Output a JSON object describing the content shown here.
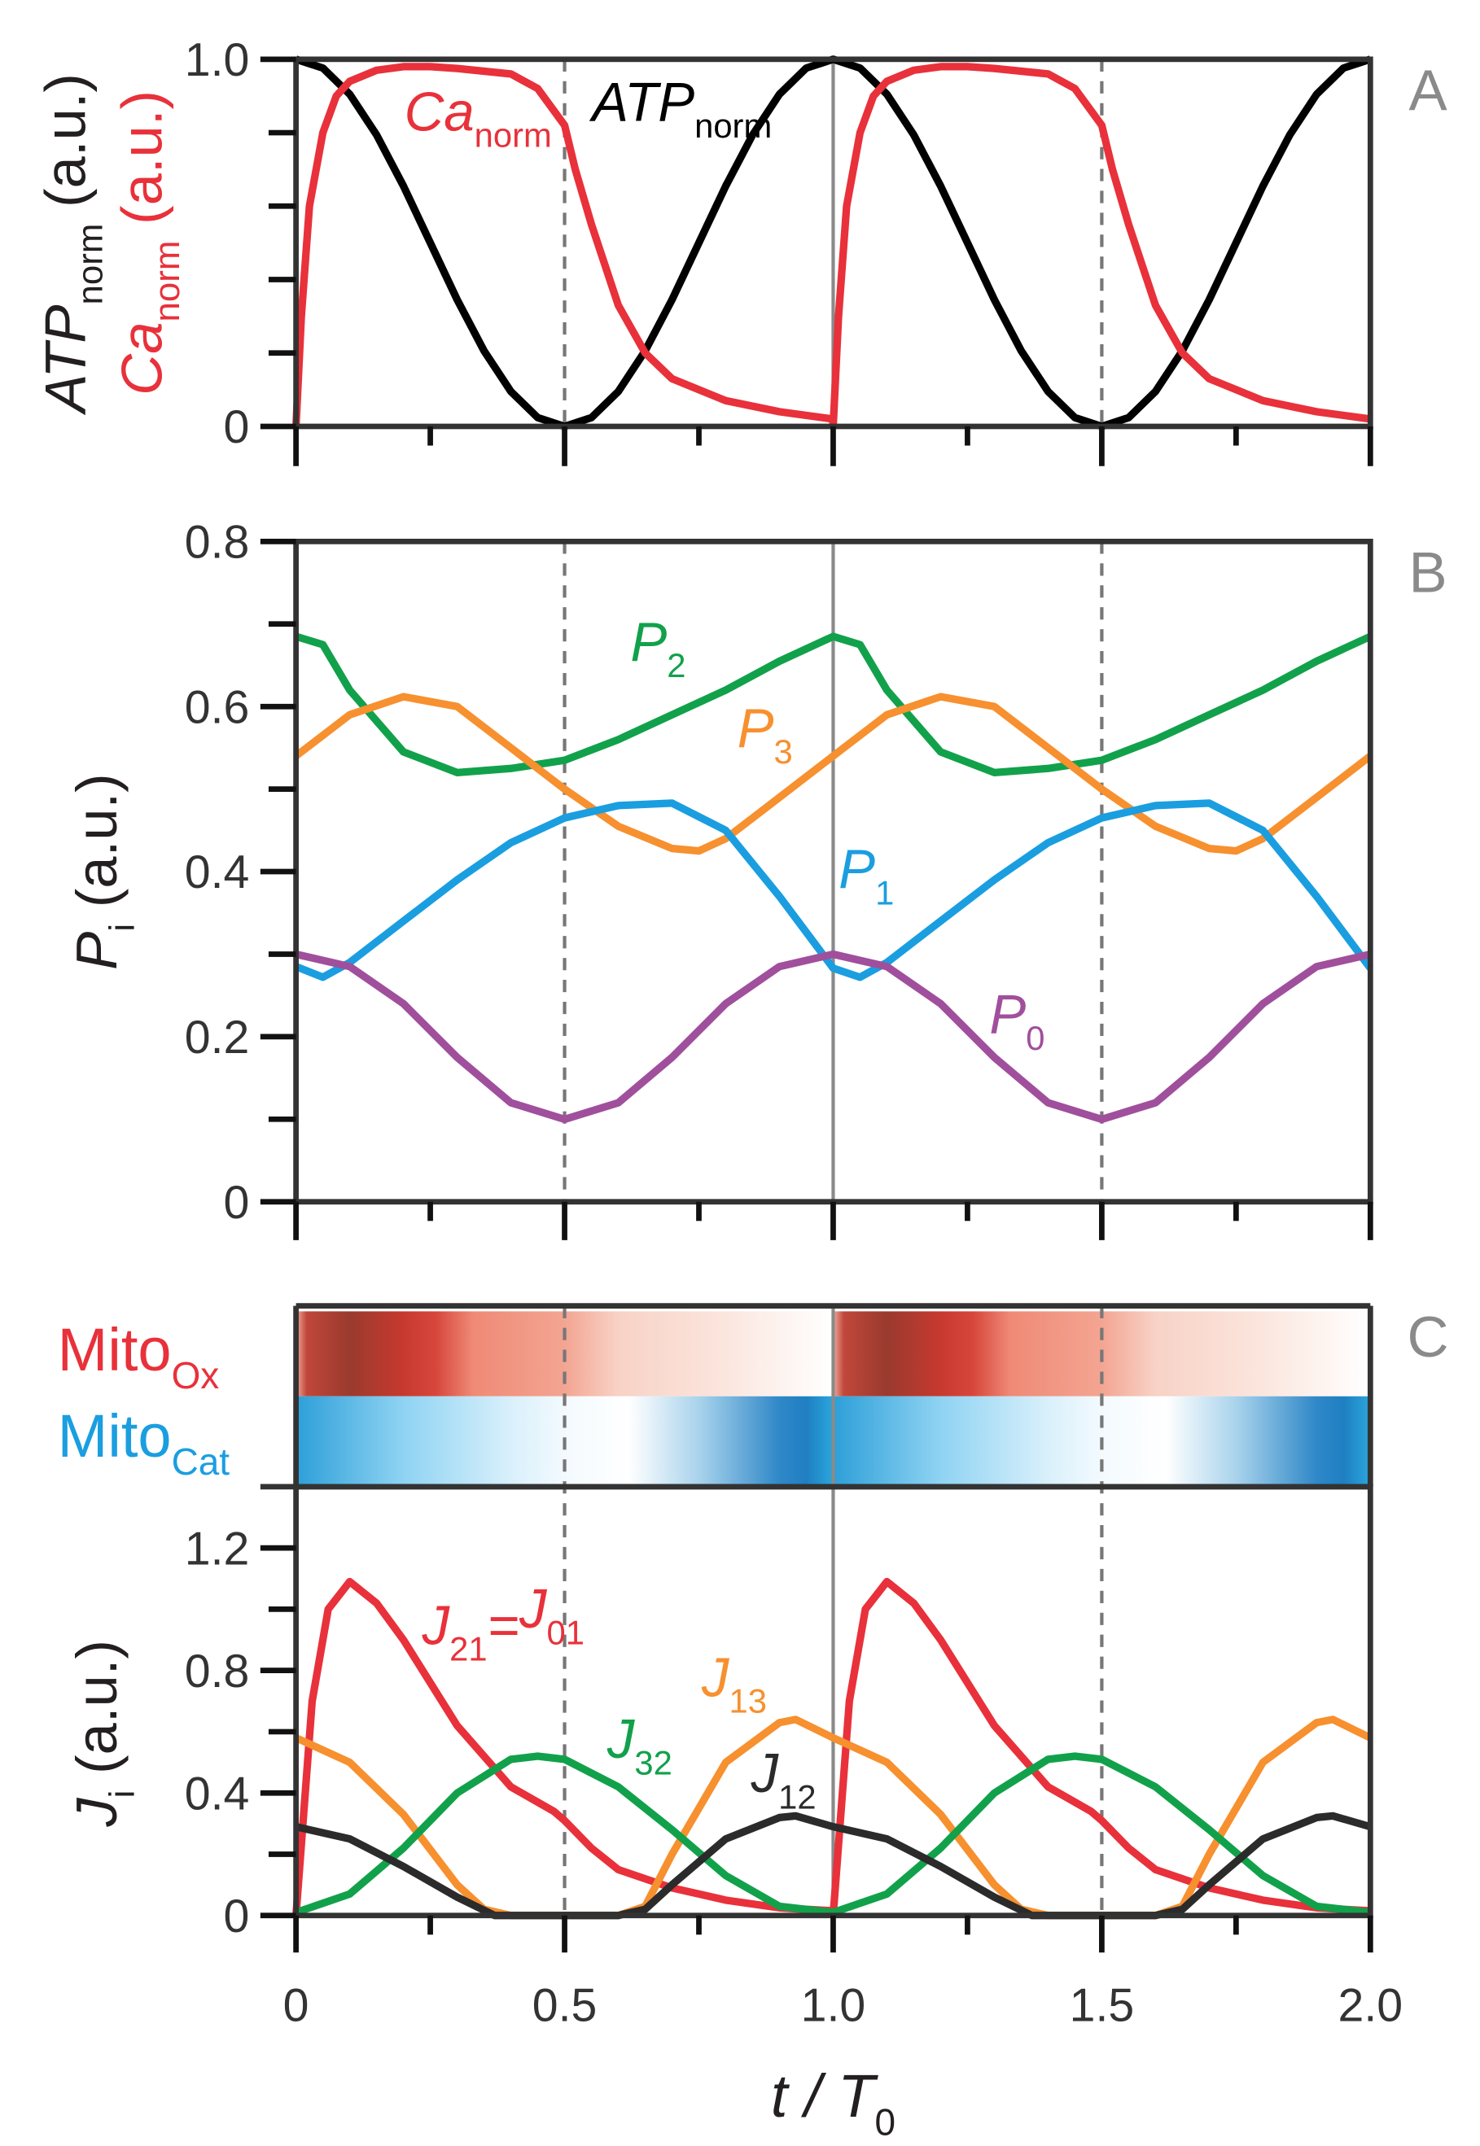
{
  "chart_data": [
    {
      "id": "A",
      "type": "line",
      "panel_label": "A",
      "ylabel": [
        {
          "main": "ATP",
          "sub": "norm",
          "rest": " (a.u.)",
          "color": "#231f20"
        },
        {
          "main": "Ca",
          "sub": "norm",
          "rest": " (a.u.)",
          "color": "#e8313a"
        }
      ],
      "ylim": [
        0,
        1.0
      ],
      "yticks": [
        {
          "v": 0,
          "label": "0"
        },
        {
          "v": 0.2,
          "label": ""
        },
        {
          "v": 0.4,
          "label": ""
        },
        {
          "v": 0.6,
          "label": ""
        },
        {
          "v": 0.8,
          "label": ""
        },
        {
          "v": 1.0,
          "label": "1.0"
        }
      ],
      "xlim": [
        0,
        2
      ],
      "series": [
        {
          "name": "ATPnorm",
          "label": {
            "main": "ATP",
            "sub": "norm"
          },
          "color": "#000000",
          "x": [
            0,
            0.05,
            0.1,
            0.15,
            0.2,
            0.25,
            0.3,
            0.35,
            0.4,
            0.45,
            0.5,
            0.55,
            0.6,
            0.65,
            0.7,
            0.75,
            0.8,
            0.85,
            0.9,
            0.95,
            1.0,
            1.05,
            1.1,
            1.15,
            1.2,
            1.25,
            1.3,
            1.35,
            1.4,
            1.45,
            1.5,
            1.55,
            1.6,
            1.65,
            1.7,
            1.75,
            1.8,
            1.85,
            1.9,
            1.95,
            2.0
          ],
          "y": [
            1,
            0.976,
            0.905,
            0.794,
            0.655,
            0.5,
            0.345,
            0.206,
            0.095,
            0.024,
            0,
            0.024,
            0.095,
            0.206,
            0.345,
            0.5,
            0.655,
            0.794,
            0.905,
            0.976,
            1,
            0.976,
            0.905,
            0.794,
            0.655,
            0.5,
            0.345,
            0.206,
            0.095,
            0.024,
            0,
            0.024,
            0.095,
            0.206,
            0.345,
            0.5,
            0.655,
            0.794,
            0.905,
            0.976,
            1
          ]
        },
        {
          "name": "Canorm",
          "label": {
            "main": "Ca",
            "sub": "norm"
          },
          "color": "#e8313a",
          "x": [
            0,
            0.01,
            0.025,
            0.05,
            0.075,
            0.1,
            0.15,
            0.2,
            0.25,
            0.3,
            0.4,
            0.45,
            0.5,
            0.52,
            0.55,
            0.6,
            0.65,
            0.7,
            0.8,
            0.9,
            0.999,
            1.0,
            1.01,
            1.025,
            1.05,
            1.075,
            1.1,
            1.15,
            1.2,
            1.25,
            1.3,
            1.4,
            1.45,
            1.5,
            1.52,
            1.55,
            1.6,
            1.65,
            1.7,
            1.8,
            1.9,
            2.0
          ],
          "y": [
            0,
            0.3,
            0.6,
            0.8,
            0.9,
            0.94,
            0.97,
            0.98,
            0.98,
            0.975,
            0.96,
            0.92,
            0.82,
            0.7,
            0.55,
            0.33,
            0.2,
            0.13,
            0.07,
            0.04,
            0.02,
            0,
            0.3,
            0.6,
            0.8,
            0.9,
            0.94,
            0.97,
            0.98,
            0.98,
            0.975,
            0.96,
            0.92,
            0.82,
            0.7,
            0.55,
            0.33,
            0.2,
            0.13,
            0.07,
            0.04,
            0.02
          ]
        }
      ]
    },
    {
      "id": "B",
      "type": "line",
      "panel_label": "B",
      "ylabel": [
        {
          "main": "P",
          "sub": "i",
          "rest": " (a.u.)",
          "color": "#231f20"
        }
      ],
      "ylim": [
        0,
        0.8
      ],
      "yticks": [
        {
          "v": 0,
          "label": "0"
        },
        {
          "v": 0.1,
          "label": ""
        },
        {
          "v": 0.2,
          "label": "0.2"
        },
        {
          "v": 0.3,
          "label": ""
        },
        {
          "v": 0.4,
          "label": "0.4"
        },
        {
          "v": 0.5,
          "label": ""
        },
        {
          "v": 0.6,
          "label": "0.6"
        },
        {
          "v": 0.7,
          "label": ""
        },
        {
          "v": 0.8,
          "label": "0.8"
        }
      ],
      "xlim": [
        0,
        2
      ],
      "series": [
        {
          "name": "P2",
          "label": {
            "main": "P",
            "sub": "2"
          },
          "color": "#12a14b",
          "x": [
            0,
            0.05,
            0.1,
            0.2,
            0.3,
            0.4,
            0.5,
            0.6,
            0.7,
            0.8,
            0.9,
            1.0,
            1.05,
            1.1,
            1.2,
            1.3,
            1.4,
            1.5,
            1.6,
            1.7,
            1.8,
            1.9,
            2.0
          ],
          "y": [
            0.685,
            0.675,
            0.62,
            0.545,
            0.52,
            0.525,
            0.535,
            0.56,
            0.59,
            0.62,
            0.655,
            0.685,
            0.675,
            0.62,
            0.545,
            0.52,
            0.525,
            0.535,
            0.56,
            0.59,
            0.62,
            0.655,
            0.685
          ]
        },
        {
          "name": "P3",
          "label": {
            "main": "P",
            "sub": "3"
          },
          "color": "#f7902f",
          "x": [
            0,
            0.1,
            0.2,
            0.3,
            0.4,
            0.5,
            0.6,
            0.7,
            0.75,
            0.8,
            0.9,
            1.0,
            1.1,
            1.2,
            1.3,
            1.4,
            1.5,
            1.6,
            1.7,
            1.75,
            1.8,
            1.9,
            2.0
          ],
          "y": [
            0.54,
            0.59,
            0.612,
            0.6,
            0.55,
            0.5,
            0.455,
            0.428,
            0.425,
            0.44,
            0.49,
            0.54,
            0.59,
            0.612,
            0.6,
            0.55,
            0.5,
            0.455,
            0.428,
            0.425,
            0.44,
            0.49,
            0.54
          ]
        },
        {
          "name": "P1",
          "label": {
            "main": "P",
            "sub": "1"
          },
          "color": "#1a9ee0",
          "x": [
            0,
            0.05,
            0.1,
            0.2,
            0.3,
            0.4,
            0.5,
            0.6,
            0.7,
            0.8,
            0.9,
            1.0,
            1.05,
            1.1,
            1.2,
            1.3,
            1.4,
            1.5,
            1.6,
            1.7,
            1.8,
            1.9,
            2.0
          ],
          "y": [
            0.285,
            0.272,
            0.29,
            0.34,
            0.39,
            0.435,
            0.465,
            0.48,
            0.483,
            0.45,
            0.37,
            0.283,
            0.272,
            0.29,
            0.34,
            0.39,
            0.435,
            0.465,
            0.48,
            0.483,
            0.45,
            0.37,
            0.283
          ]
        },
        {
          "name": "P0",
          "label": {
            "main": "P",
            "sub": "0"
          },
          "color": "#a04f9c",
          "x": [
            0,
            0.1,
            0.2,
            0.3,
            0.4,
            0.5,
            0.6,
            0.7,
            0.8,
            0.9,
            1.0,
            1.1,
            1.2,
            1.3,
            1.4,
            1.5,
            1.6,
            1.7,
            1.8,
            1.9,
            2.0
          ],
          "y": [
            0.3,
            0.285,
            0.24,
            0.175,
            0.12,
            0.1,
            0.12,
            0.175,
            0.24,
            0.285,
            0.3,
            0.285,
            0.24,
            0.175,
            0.12,
            0.1,
            0.12,
            0.175,
            0.24,
            0.285,
            0.3
          ]
        }
      ]
    },
    {
      "id": "C",
      "type": "line",
      "panel_label": "C",
      "ylabel": [
        {
          "main": "J",
          "sub": "i",
          "rest": " (a.u.)",
          "color": "#231f20"
        }
      ],
      "ylim": [
        0,
        1.4
      ],
      "yticks": [
        {
          "v": 0,
          "label": "0"
        },
        {
          "v": 0.2,
          "label": ""
        },
        {
          "v": 0.4,
          "label": "0.4"
        },
        {
          "v": 0.6,
          "label": ""
        },
        {
          "v": 0.8,
          "label": "0.8"
        },
        {
          "v": 1.0,
          "label": ""
        },
        {
          "v": 1.2,
          "label": "1.2"
        }
      ],
      "xlim": [
        0,
        2
      ],
      "xlabel": {
        "main": "t / T",
        "sub": "0"
      },
      "xticks": [
        {
          "v": 0,
          "label": "0"
        },
        {
          "v": 0.5,
          "label": "0.5"
        },
        {
          "v": 1.0,
          "label": "1.0"
        },
        {
          "v": 1.5,
          "label": "1.5"
        },
        {
          "v": 2.0,
          "label": "2.0"
        }
      ],
      "heatmap": [
        {
          "name": "MitoOx",
          "label": {
            "main": "Mito",
            "sub": "Ox"
          },
          "label_color": "#e8313a",
          "stops": [
            {
              "t": 0,
              "c": "#f2a99a"
            },
            {
              "t": 0.02,
              "c": "#c0473a"
            },
            {
              "t": 0.1,
              "c": "#9a3a2e"
            },
            {
              "t": 0.2,
              "c": "#c7392f"
            },
            {
              "t": 0.26,
              "c": "#d7463b"
            },
            {
              "t": 0.33,
              "c": "#ef8a76"
            },
            {
              "t": 0.5,
              "c": "#f3a592"
            },
            {
              "t": 0.6,
              "c": "#f8d2c6"
            },
            {
              "t": 0.8,
              "c": "#fbe6de"
            },
            {
              "t": 1.0,
              "c": "#ffffff"
            }
          ]
        },
        {
          "name": "MitoCat",
          "label": {
            "main": "Mito",
            "sub": "Cat"
          },
          "label_color": "#1a9ee0",
          "stops": [
            {
              "t": 0,
              "c": "#2d9fd8"
            },
            {
              "t": 0.2,
              "c": "#8fd3f3"
            },
            {
              "t": 0.4,
              "c": "#d9f0fb"
            },
            {
              "t": 0.5,
              "c": "#f3fafe"
            },
            {
              "t": 0.62,
              "c": "#ffffff"
            },
            {
              "t": 0.75,
              "c": "#a9d3ec"
            },
            {
              "t": 0.9,
              "c": "#2f88c8"
            },
            {
              "t": 0.95,
              "c": "#1f7fc2"
            },
            {
              "t": 1.0,
              "c": "#2aa6dc"
            }
          ]
        }
      ],
      "series": [
        {
          "name": "J21=J01",
          "label": {
            "main": "J",
            "sub": "21",
            "eq": "=",
            "main2": "J",
            "sub2": "01"
          },
          "color": "#e8313a",
          "x": [
            0,
            0.03,
            0.06,
            0.1,
            0.15,
            0.2,
            0.3,
            0.4,
            0.48,
            0.5,
            0.55,
            0.6,
            0.7,
            0.8,
            0.9,
            0.999,
            1.0,
            1.03,
            1.06,
            1.1,
            1.15,
            1.2,
            1.3,
            1.4,
            1.48,
            1.5,
            1.55,
            1.6,
            1.7,
            1.8,
            1.9,
            2.0
          ],
          "y": [
            0,
            0.7,
            1.0,
            1.09,
            1.02,
            0.9,
            0.62,
            0.42,
            0.34,
            0.31,
            0.22,
            0.15,
            0.09,
            0.05,
            0.025,
            0.015,
            0,
            0.7,
            1.0,
            1.09,
            1.02,
            0.9,
            0.62,
            0.42,
            0.34,
            0.31,
            0.22,
            0.15,
            0.09,
            0.05,
            0.025,
            0.015
          ]
        },
        {
          "name": "J13",
          "label": {
            "main": "J",
            "sub": "13"
          },
          "color": "#f7902f",
          "x": [
            0,
            0.1,
            0.2,
            0.3,
            0.35,
            0.4,
            0.6,
            0.65,
            0.7,
            0.8,
            0.9,
            0.93,
            1.0,
            1.1,
            1.2,
            1.3,
            1.35,
            1.4,
            1.6,
            1.65,
            1.7,
            1.8,
            1.9,
            1.93,
            2.0
          ],
          "y": [
            0.58,
            0.5,
            0.33,
            0.1,
            0.02,
            0,
            0,
            0.03,
            0.2,
            0.5,
            0.63,
            0.64,
            0.58,
            0.5,
            0.33,
            0.1,
            0.02,
            0,
            0,
            0.03,
            0.2,
            0.5,
            0.63,
            0.64,
            0.58
          ]
        },
        {
          "name": "J32",
          "label": {
            "main": "J",
            "sub": "32"
          },
          "color": "#12a14b",
          "x": [
            0,
            0.1,
            0.2,
            0.3,
            0.4,
            0.45,
            0.5,
            0.6,
            0.7,
            0.8,
            0.9,
            1.0,
            1.1,
            1.2,
            1.3,
            1.4,
            1.45,
            1.5,
            1.6,
            1.7,
            1.8,
            1.9,
            2.0
          ],
          "y": [
            0.01,
            0.07,
            0.22,
            0.4,
            0.51,
            0.52,
            0.51,
            0.42,
            0.28,
            0.13,
            0.03,
            0.01,
            0.07,
            0.22,
            0.4,
            0.51,
            0.52,
            0.51,
            0.42,
            0.28,
            0.13,
            0.03,
            0.01
          ]
        },
        {
          "name": "J12",
          "label": {
            "main": "J",
            "sub": "12"
          },
          "color": "#2b2b2b",
          "x": [
            0,
            0.1,
            0.2,
            0.3,
            0.37,
            0.6,
            0.65,
            0.7,
            0.8,
            0.9,
            0.93,
            1.0,
            1.1,
            1.2,
            1.3,
            1.37,
            1.6,
            1.65,
            1.7,
            1.8,
            1.9,
            1.93,
            2.0
          ],
          "y": [
            0.29,
            0.25,
            0.16,
            0.06,
            0,
            0,
            0.02,
            0.1,
            0.25,
            0.32,
            0.325,
            0.29,
            0.25,
            0.16,
            0.06,
            0,
            0,
            0.02,
            0.1,
            0.25,
            0.32,
            0.325,
            0.29
          ]
        }
      ]
    }
  ]
}
